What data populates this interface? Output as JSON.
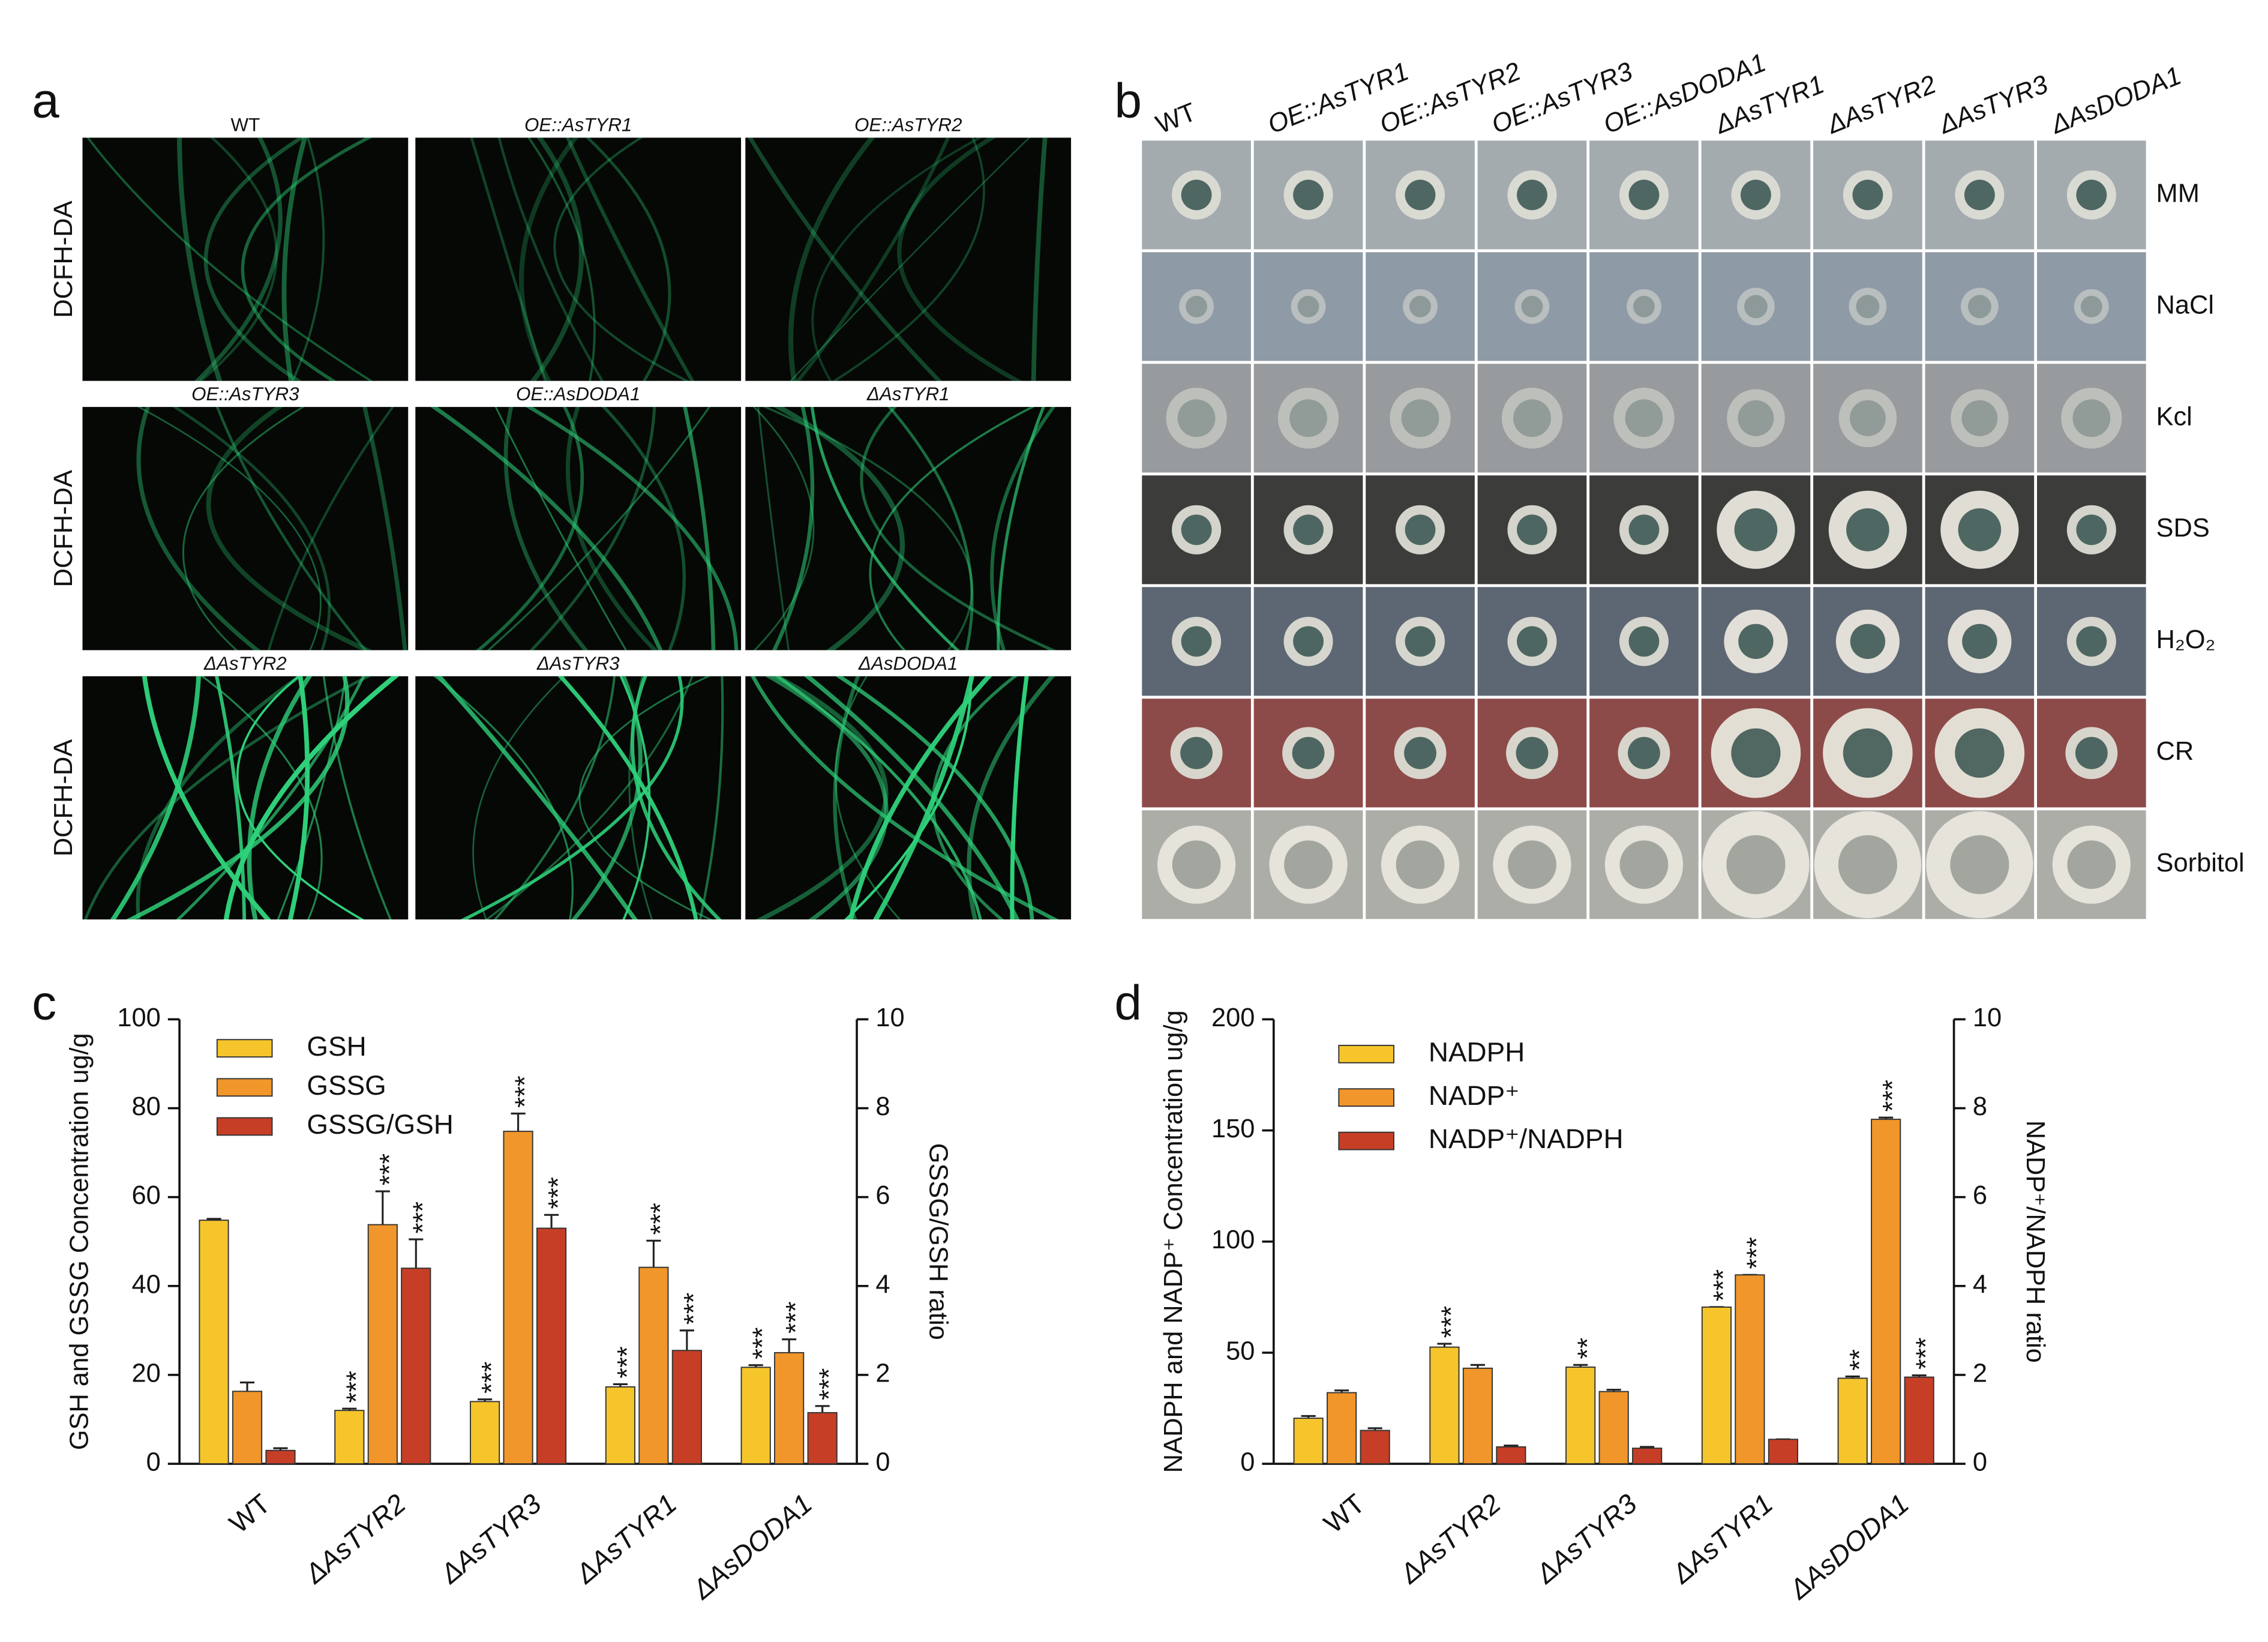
{
  "panel_labels": [
    "a",
    "b",
    "c",
    "d"
  ],
  "panel_a": {
    "row_label": "DCFH-DA",
    "titles": [
      "WT",
      "OE::AsTYR1",
      "OE::AsTYR2",
      "OE::AsTYR3",
      "OE::AsDODA1",
      "ΔAsTYR1",
      "ΔAsTYR2",
      "ΔAsTYR3",
      "ΔAsDODA1"
    ]
  },
  "panel_b": {
    "columns": [
      "WT",
      "OE::AsTYR1",
      "OE::AsTYR2",
      "OE::AsTYR3",
      "OE::AsDODA1",
      "ΔAsTYR1",
      "ΔAsTYR2",
      "ΔAsTYR3",
      "ΔAsDODA1"
    ],
    "rows": [
      "MM",
      "NaCl",
      "Kcl",
      "SDS",
      "H₂O₂",
      "CR",
      "Sorbitol"
    ]
  },
  "chart_data": [
    {
      "type": "bar",
      "categories": [
        "WT",
        "ΔAsTYR2",
        "ΔAsTYR3",
        "ΔAsTYR1",
        "ΔAsDODA1"
      ],
      "ylabel": "GSH and GSSG Concentration ug/g",
      "y2label": "GSSG/GSH ratio",
      "ylim": [
        0,
        100
      ],
      "yticks": [
        0,
        20,
        40,
        60,
        80,
        100
      ],
      "y2lim": [
        0,
        10
      ],
      "y2ticks": [
        0,
        2,
        4,
        6,
        8,
        10
      ],
      "legend": "upper left",
      "series": [
        {
          "name": "GSH",
          "color": "#f5c52b",
          "values": [
            54.8,
            12,
            14,
            17.3,
            21.7
          ],
          "errors": [
            0.3,
            0.4,
            0.5,
            0.6,
            0.5
          ],
          "annotations": [
            null,
            "***",
            "***",
            "***",
            "***"
          ]
        },
        {
          "name": "GSSG",
          "color": "#f0962a",
          "values": [
            16.3,
            53.8,
            74.8,
            44.2,
            25
          ],
          "errors": [
            2,
            7.5,
            4,
            6,
            3
          ],
          "annotations": [
            null,
            "***",
            "***",
            "***",
            "***"
          ]
        },
        {
          "name": "GSSG/GSH",
          "color": "#c73e26",
          "axis": "y2",
          "values": [
            0.3,
            4.4,
            5.3,
            2.55,
            1.15
          ],
          "errors": [
            0.05,
            0.65,
            0.3,
            0.45,
            0.15
          ],
          "annotations": [
            null,
            "***",
            "***",
            "***",
            "***"
          ]
        }
      ]
    },
    {
      "type": "bar",
      "categories": [
        "WT",
        "ΔAsTYR2",
        "ΔAsTYR3",
        "ΔAsTYR1",
        "ΔAsDODA1"
      ],
      "ylabel": "NADPH and NADP⁺ Concentration ug/g",
      "y2label": "NADP⁺/NADPH ratio",
      "ylim": [
        0,
        200
      ],
      "yticks": [
        0,
        50,
        100,
        150,
        200
      ],
      "y2lim": [
        0,
        10
      ],
      "y2ticks": [
        0,
        2,
        4,
        6,
        8,
        10
      ],
      "legend": "upper left",
      "series": [
        {
          "name": "NADPH",
          "color": "#f5c52b",
          "values": [
            20.5,
            52.5,
            43.5,
            70.5,
            38.5
          ],
          "errors": [
            1,
            1.5,
            1,
            0,
            0.8
          ],
          "annotations": [
            null,
            "***",
            "**",
            "***",
            "**"
          ]
        },
        {
          "name": "NADP⁺",
          "color": "#f0962a",
          "values": [
            32,
            43,
            32.5,
            85,
            155
          ],
          "errors": [
            1,
            1.5,
            0.8,
            0,
            0.8
          ],
          "annotations": [
            null,
            null,
            null,
            "***",
            "***"
          ]
        },
        {
          "name": "NADP⁺/NADPH",
          "color": "#c73e26",
          "axis": "y2",
          "values": [
            0.75,
            0.38,
            0.35,
            0.55,
            1.95
          ],
          "errors": [
            0.05,
            0.03,
            0.03,
            0,
            0.04
          ],
          "annotations": [
            null,
            null,
            null,
            null,
            "***"
          ]
        }
      ]
    }
  ]
}
